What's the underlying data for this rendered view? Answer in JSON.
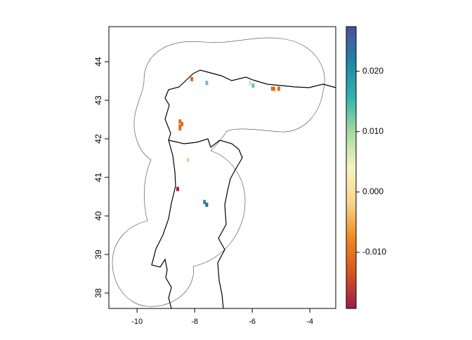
{
  "chart_data": {
    "type": "raster",
    "xlim": [
      -10.98,
      -3.1
    ],
    "ylim": [
      37.6,
      44.91
    ],
    "xticks": [
      -10,
      -8,
      -6,
      -4
    ],
    "yticks": [
      38,
      39,
      40,
      41,
      42,
      43,
      44
    ],
    "colorbar": {
      "lim": [
        -0.0193,
        0.0274
      ],
      "ticks": [
        {
          "value": -0.01,
          "label": "-0.010"
        },
        {
          "value": 0,
          "label": "0.000"
        },
        {
          "value": 0.01,
          "label": "0.010"
        },
        {
          "value": 0.02,
          "label": "0.020"
        }
      ],
      "colors": [
        "#9e1b4b",
        "#d9531e",
        "#ef8a1c",
        "#fcd38a",
        "#f4f5c2",
        "#a6d9a0",
        "#30b3b0",
        "#1f86a8",
        "#4a4f9c"
      ]
    },
    "x": [
      -8.1,
      -7.58,
      -6.07,
      -5.97,
      -5.3,
      -5.25,
      -5.08,
      -8.51,
      -8.51,
      -8.44,
      -8.51,
      -8.24,
      -8.59,
      -7.66,
      -7.58
    ],
    "y": [
      43.55,
      43.45,
      43.45,
      43.38,
      43.3,
      43.3,
      43.3,
      42.45,
      42.32,
      42.38,
      42.27,
      41.45,
      40.7,
      40.36,
      40.29
    ],
    "values": [
      -0.011,
      0.013,
      0.007,
      0.013,
      -0.011,
      -0.011,
      -0.011,
      -0.011,
      -0.011,
      -0.011,
      -0.011,
      0.007,
      -0.019,
      0.02,
      0.025
    ]
  }
}
